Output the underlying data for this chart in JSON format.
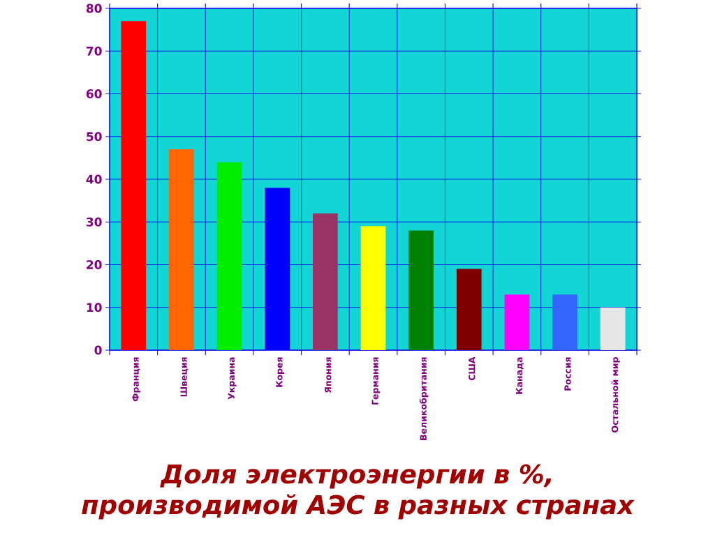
{
  "chart_data": {
    "type": "bar",
    "title": "Доля электроэнергии в %, производимой АЭС в разных странах",
    "categories": [
      "Франция",
      "Швеция",
      "Украина",
      "Корея",
      "Япония",
      "Германия",
      "Великобритания",
      "США",
      "Канада",
      "Россия",
      "Остальной мир"
    ],
    "values": [
      77,
      47,
      44,
      38,
      32,
      29,
      28,
      19,
      13,
      13,
      10
    ],
    "colors": [
      "#ff0000",
      "#ff6600",
      "#00ee00",
      "#0000ff",
      "#993366",
      "#ffff00",
      "#008000",
      "#800000",
      "#ff00ff",
      "#3366ff",
      "#e6e6e6"
    ],
    "ylim": [
      0,
      80
    ],
    "yticks": [
      0,
      10,
      20,
      30,
      40,
      50,
      60,
      70,
      80
    ],
    "grid": true
  }
}
